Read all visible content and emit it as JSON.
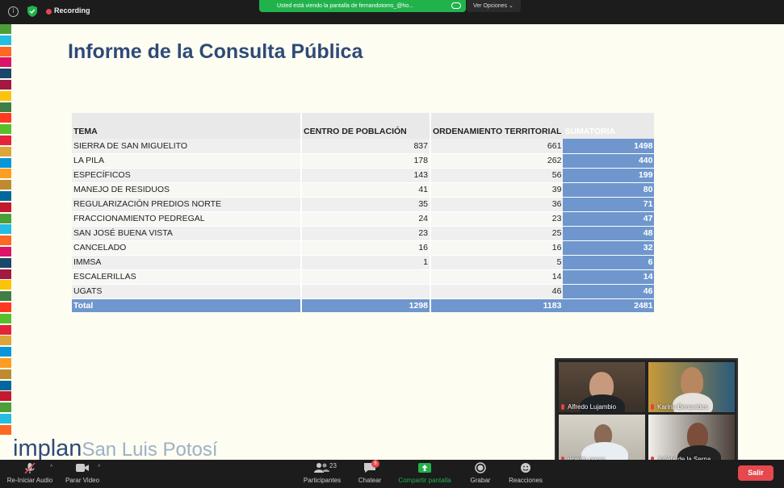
{
  "topbar": {
    "recording_label": "Recording",
    "share_banner": "Usted está viendo la pantalla de fernandotoms_@ho...",
    "view_options": "Ver Opciones ⌄"
  },
  "slide": {
    "title": "Informe de la Consulta Pública",
    "table": {
      "headers": [
        "TEMA",
        "CENTRO DE POBLACIÓN",
        "ORDENAMIENTO TERRITORIAL",
        "SUMATORIA"
      ],
      "rows": [
        {
          "tema": "SIERRA DE SAN MIGUELITO",
          "centro": "837",
          "ordenamiento": "661",
          "suma": "1498"
        },
        {
          "tema": "LA PILA",
          "centro": "178",
          "ordenamiento": "262",
          "suma": "440"
        },
        {
          "tema": "ESPECÍFICOS",
          "centro": "143",
          "ordenamiento": "56",
          "suma": "199"
        },
        {
          "tema": "MANEJO DE RESIDUOS",
          "centro": "41",
          "ordenamiento": "39",
          "suma": "80"
        },
        {
          "tema": "REGULARIZACIÓN PREDIOS NORTE",
          "centro": "35",
          "ordenamiento": "36",
          "suma": "71"
        },
        {
          "tema": "FRACCIONAMIENTO PEDREGAL",
          "centro": "24",
          "ordenamiento": "23",
          "suma": "47"
        },
        {
          "tema": "SAN JOSÉ BUENA VISTA",
          "centro": "23",
          "ordenamiento": "25",
          "suma": "48"
        },
        {
          "tema": "CANCELADO",
          "centro": "16",
          "ordenamiento": "16",
          "suma": "32"
        },
        {
          "tema": "IMMSA",
          "centro": "1",
          "ordenamiento": "5",
          "suma": "6"
        },
        {
          "tema": "ESCALERILLAS",
          "centro": "",
          "ordenamiento": "14",
          "suma": "14"
        },
        {
          "tema": "UGATS",
          "centro": "",
          "ordenamiento": "46",
          "suma": "46"
        }
      ],
      "total": {
        "tema": "Total",
        "centro": "1298",
        "ordenamiento": "1183",
        "suma": "2481"
      }
    },
    "logo": {
      "brand": "implan",
      "city": "San Luis Potosí"
    }
  },
  "gallery": {
    "participants": [
      {
        "name": "Alfredo Lujambio"
      },
      {
        "name": "Karina Benavides"
      },
      {
        "name": "ricardo perez"
      },
      {
        "name": "Julieta de la Serna"
      }
    ]
  },
  "toolbar": {
    "audio_label": "Re-Iniciar Audio",
    "video_label": "Parar Video",
    "participants_label": "Participantes",
    "participants_count": "23",
    "chat_label": "Chatear",
    "chat_badge": "6",
    "share_label": "Compartir pantalla",
    "record_label": "Grabar",
    "reactions_label": "Reacciones",
    "exit_label": "Salir"
  },
  "colors": {
    "accent_green": "#22b24c",
    "table_blue": "#6f97cd",
    "title_blue": "#2f4a78",
    "exit_red": "#e5484d"
  }
}
